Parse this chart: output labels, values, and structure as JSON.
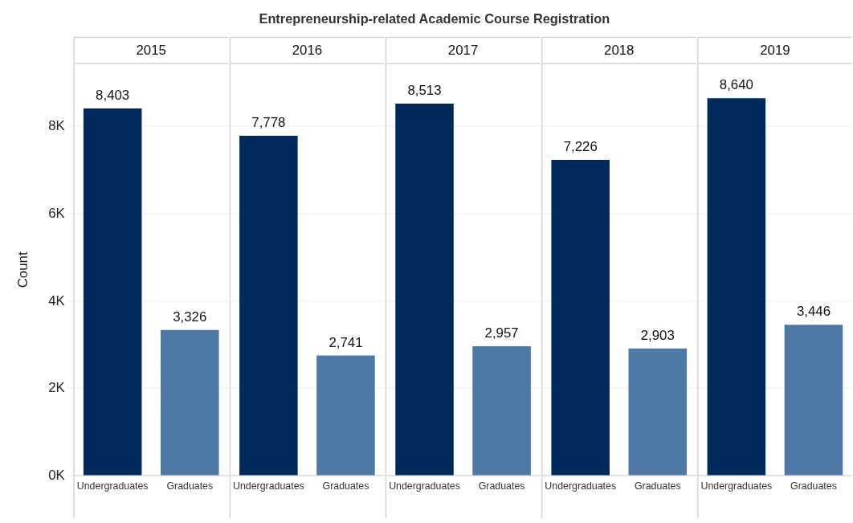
{
  "chart_data": {
    "type": "bar",
    "title": "Entrepreneurship-related Academic Course Registration",
    "ylabel": "Count",
    "categories": [
      "2015",
      "2016",
      "2017",
      "2018",
      "2019"
    ],
    "series": [
      {
        "name": "Undergraduates",
        "color": "#002a5c",
        "values": [
          8403,
          7778,
          8513,
          7226,
          8640
        ],
        "value_labels": [
          "8,403",
          "7,778",
          "8,513",
          "7,226",
          "8,640"
        ]
      },
      {
        "name": "Graduates",
        "color": "#4e79a7",
        "values": [
          3326,
          2741,
          2957,
          2903,
          3446
        ],
        "value_labels": [
          "3,326",
          "2,741",
          "2,957",
          "2,903",
          "3,446"
        ]
      }
    ],
    "ylim": [
      0,
      9430
    ],
    "yticks": [
      {
        "value": 0,
        "label": "0K"
      },
      {
        "value": 2000,
        "label": "2K"
      },
      {
        "value": 4000,
        "label": "4K"
      },
      {
        "value": 6000,
        "label": "6K"
      },
      {
        "value": 8000,
        "label": "8K"
      }
    ],
    "grid": "y"
  }
}
